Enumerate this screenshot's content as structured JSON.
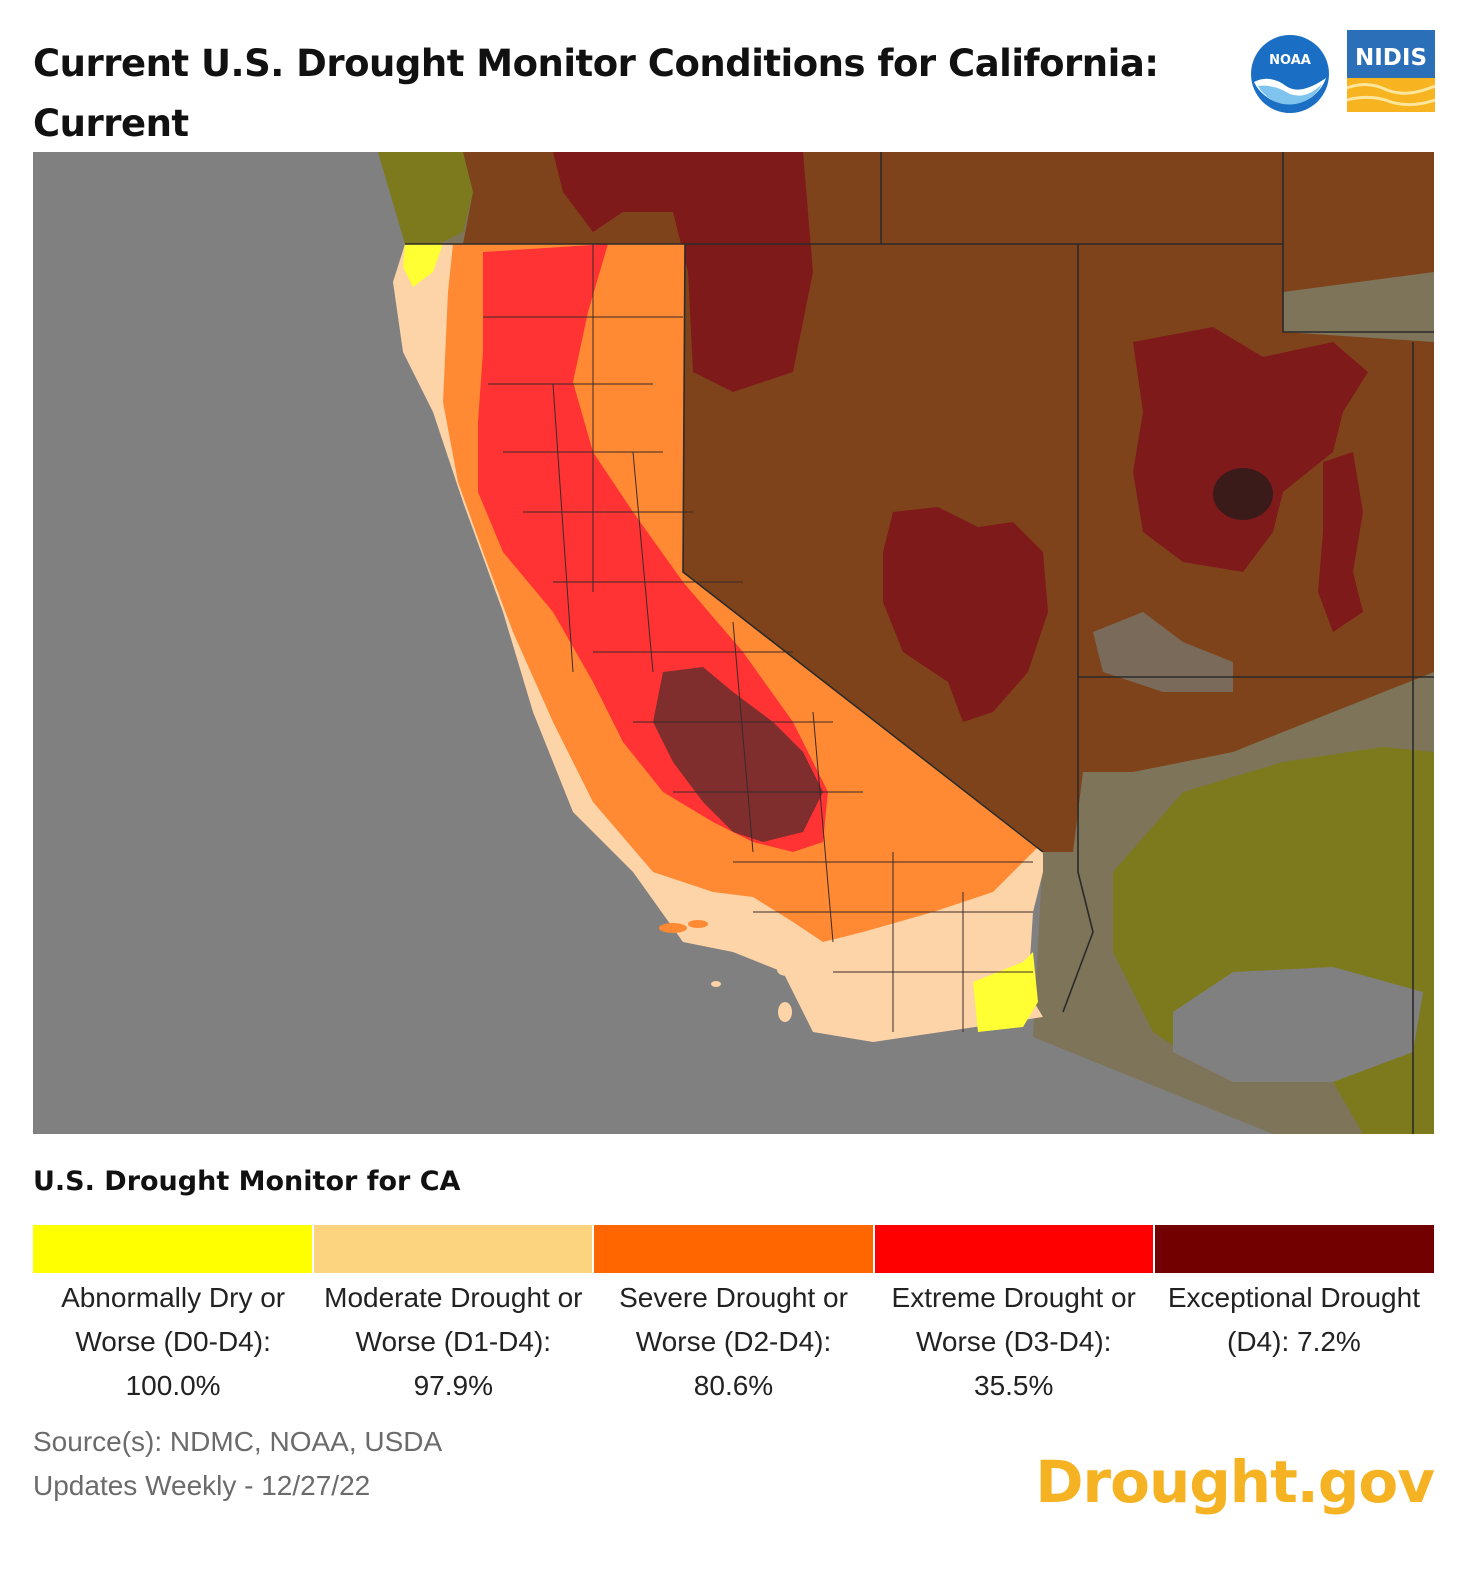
{
  "header": {
    "title": "Current U.S. Drought Monitor Conditions for California: Current",
    "logos": {
      "noaa_text": "NOAA",
      "nidis_text": "NIDIS"
    }
  },
  "legend": {
    "title": "U.S. Drought Monitor for CA",
    "items": [
      {
        "label": "Abnormally Dry or Worse (D0-D4): 100.0%",
        "color": "#ffff00"
      },
      {
        "label": "Moderate Drought or Worse (D1-D4): 97.9%",
        "color": "#fcd37f"
      },
      {
        "label": "Severe Drought or Worse (D2-D4): 80.6%",
        "color": "#ff6600"
      },
      {
        "label": "Extreme Drought or Worse (D3-D4): 35.5%",
        "color": "#ff0000"
      },
      {
        "label": "Exceptional Drought (D4): 7.2%",
        "color": "#730000"
      }
    ]
  },
  "footer": {
    "source": "Source(s): NDMC, NOAA, USDA",
    "updates": "Updates Weekly - 12/27/22",
    "brand": "Drought.gov"
  },
  "map_colors": {
    "ocean": "#808080",
    "outside_none": "#7a6a5a",
    "outside_d0": "#7d7a1d",
    "outside_d1": "#7d7459",
    "outside_d2": "#7f431b",
    "outside_d3": "#7f1a1a",
    "outside_d4": "#3b1a1a",
    "d0": "#ffff33",
    "d1": "#fdd3a8",
    "d2": "#ff8a33",
    "d3": "#ff3333",
    "d4": "#7f2d2d"
  }
}
